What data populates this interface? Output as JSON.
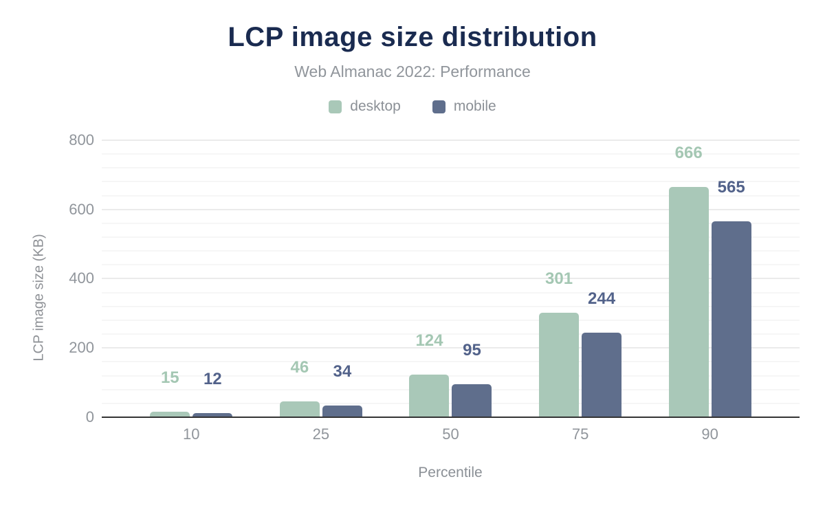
{
  "title": "LCP image size distribution",
  "subtitle": "Web Almanac 2022: Performance",
  "colors": {
    "title": "#1a2b50",
    "muted_text": "#90959b",
    "axis_line": "#333333",
    "major_grid": "#ebebeb",
    "minor_grid": "#f6f6f6",
    "desktop": "#a9c8b8",
    "mobile": "#5f6e8c",
    "desktop_label": "#a4c7b3",
    "mobile_label": "#52628a"
  },
  "chart_data": {
    "type": "bar",
    "title": "LCP image size distribution",
    "subtitle": "Web Almanac 2022: Performance",
    "categories": [
      "10",
      "25",
      "50",
      "75",
      "90"
    ],
    "series": [
      {
        "name": "desktop",
        "color": "#a9c8b8",
        "label_color": "#a4c7b3",
        "values": [
          15,
          46,
          124,
          301,
          666
        ]
      },
      {
        "name": "mobile",
        "color": "#5f6e8c",
        "label_color": "#52628a",
        "values": [
          12,
          34,
          95,
          244,
          565
        ]
      }
    ],
    "xlabel": "Percentile",
    "ylabel": "LCP image size (KB)",
    "ylim": [
      0,
      800
    ],
    "yticks": [
      0,
      200,
      400,
      600,
      800
    ],
    "minor_grid_step": 40,
    "grid": "horizontal-only",
    "legend_position": "top",
    "value_labels": "above-bars"
  }
}
